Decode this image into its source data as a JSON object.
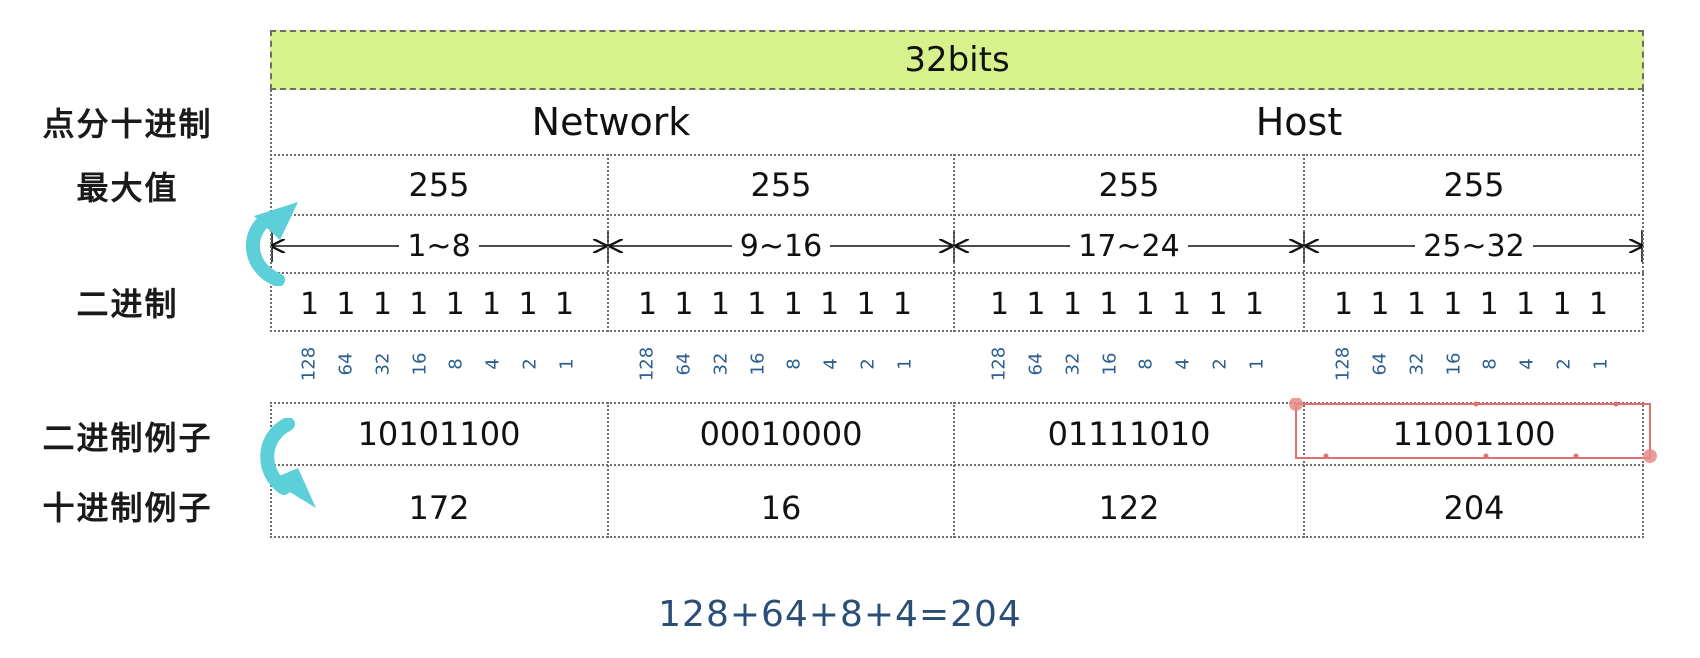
{
  "header": {
    "title": "32bits"
  },
  "row_labels": {
    "dotted_decimal": "点分十进制",
    "max_value": "最大值",
    "binary": "二进制",
    "binary_example": "二进制例子",
    "decimal_example": "十进制例子"
  },
  "parts": {
    "network": "Network",
    "host": "Host"
  },
  "max_values": [
    "255",
    "255",
    "255",
    "255"
  ],
  "bit_ranges": [
    "1~8",
    "9~16",
    "17~24",
    "25~32"
  ],
  "binary_digits": [
    "1",
    "1",
    "1",
    "1",
    "1",
    "1",
    "1",
    "1"
  ],
  "bit_weights": [
    "128",
    "64",
    "32",
    "16",
    "8",
    "4",
    "2",
    "1"
  ],
  "binary_examples": [
    "10101100",
    "00010000",
    "01111010",
    "11001100"
  ],
  "decimal_examples": [
    "172",
    "16",
    "122",
    "204"
  ],
  "formula": "128+64+8+4=204",
  "colors": {
    "header_fill": "#d7f28c",
    "arrow": "#5ccfd8",
    "highlight_box": "#e07070",
    "weights_text": "#2c5f8f",
    "formula_text": "#2b4e78"
  }
}
